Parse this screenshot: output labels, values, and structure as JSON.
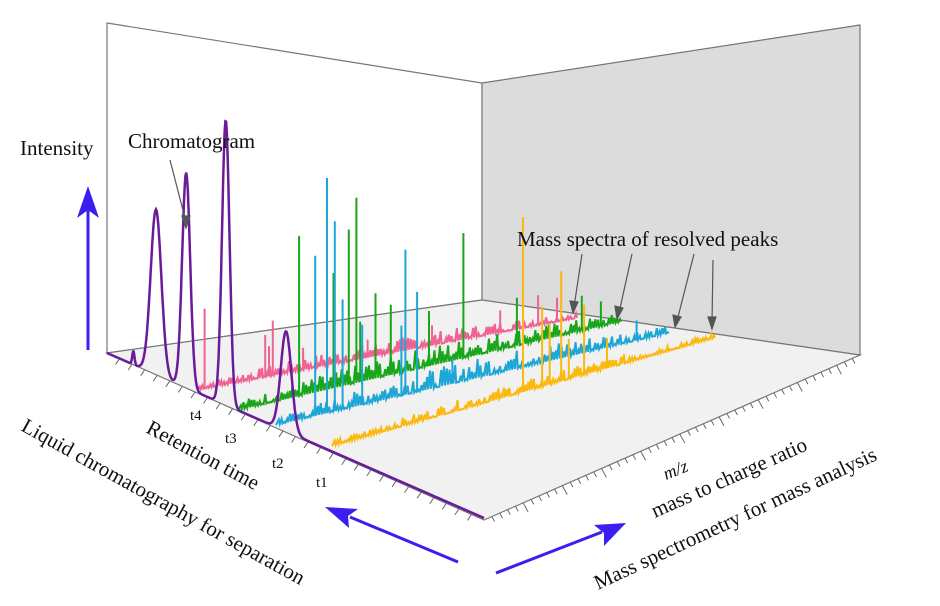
{
  "figure": {
    "intensity_label": "Intensity",
    "chromatogram_label": "Chromatogram",
    "mass_spectra_label": "Mass spectra of resolved peaks",
    "retention_time_label": "Retention time",
    "lc_label": "Liquid chromatography for separation",
    "mz_label": "m/z",
    "mz_long_label": "mass to charge ratio",
    "ms_label": "Mass spectrometry for mass analysis",
    "time_ticks": [
      "t4",
      "t3",
      "t2",
      "t1"
    ]
  },
  "colors": {
    "chromatogram": "#6a1b9a",
    "spectrum_t4": "#f06292",
    "spectrum_t3": "#1aa61a",
    "spectrum_t2": "#1ea7d6",
    "spectrum_t1": "#fbb90d",
    "arrow": "#3a1ff0",
    "panel": "#dcdcdc",
    "floor": "#f2f2f2"
  }
}
